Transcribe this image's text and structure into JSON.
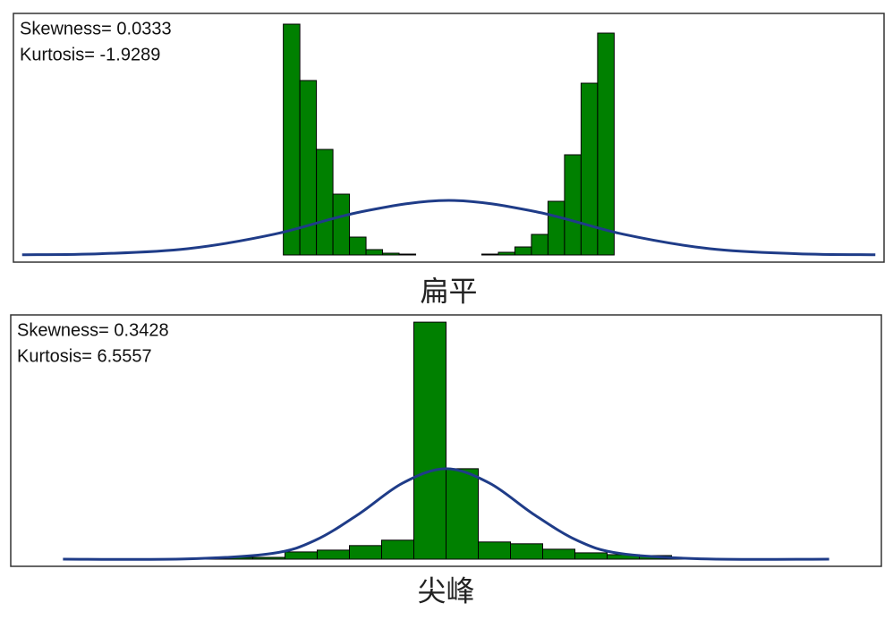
{
  "chart_data": [
    {
      "type": "histogram",
      "annotations": [
        "Skewness= 0.0333",
        "Kurtosis= -1.9289"
      ],
      "caption": "扁平",
      "bins": [
        -1.9,
        -1.71,
        -1.52,
        -1.33,
        -1.14,
        -0.95,
        -0.76,
        -0.57,
        -0.38,
        -0.19,
        0,
        0.19,
        0.38,
        0.57,
        0.76,
        0.95,
        1.14,
        1.33,
        1.52,
        1.71,
        1.9
      ],
      "counts": [
        258,
        195,
        118,
        68,
        20,
        6,
        2,
        1,
        0,
        0,
        0,
        0,
        1,
        3,
        9,
        23,
        60,
        112,
        192,
        248
      ],
      "color": "#008000",
      "curve": {
        "x": [
          -4.9,
          -4,
          -3,
          -2,
          -1,
          0,
          1,
          2,
          3,
          4,
          4.9
        ],
        "values": [
          0.2,
          1.4,
          7,
          23.3,
          48.4,
          61,
          48.4,
          23.3,
          7,
          1.4,
          0.2
        ],
        "color": "#1f3c88"
      },
      "xlim": [
        -5,
        5
      ],
      "ylim": [
        0,
        270
      ]
    },
    {
      "type": "histogram",
      "annotations": [
        "Skewness= 0.3428",
        "Kurtosis= 6.5557"
      ],
      "caption": "尖峰",
      "bins": [
        -2.96,
        -2.59,
        -2.22,
        -1.85,
        -1.48,
        -1.11,
        -0.74,
        -0.37,
        0,
        0.37,
        0.74,
        1.11,
        1.48,
        1.85,
        2.22,
        2.59,
        2.96
      ],
      "counts": [
        1,
        2,
        2,
        8,
        10,
        15,
        21,
        262,
        100,
        19,
        17,
        11,
        7,
        5,
        4,
        1
      ],
      "color": "#008000",
      "curve": {
        "x": [
          -4.4,
          -3,
          -2,
          -1.5,
          -1,
          -0.5,
          0,
          0.5,
          1,
          1.5,
          2,
          3,
          4.4
        ],
        "values": [
          0,
          0.2,
          6.3,
          21,
          50,
          84,
          100,
          84,
          50,
          21,
          6.3,
          0.2,
          0
        ],
        "color": "#1f3c88"
      },
      "xlim": [
        -5,
        5
      ],
      "ylim": [
        0,
        270
      ]
    }
  ]
}
